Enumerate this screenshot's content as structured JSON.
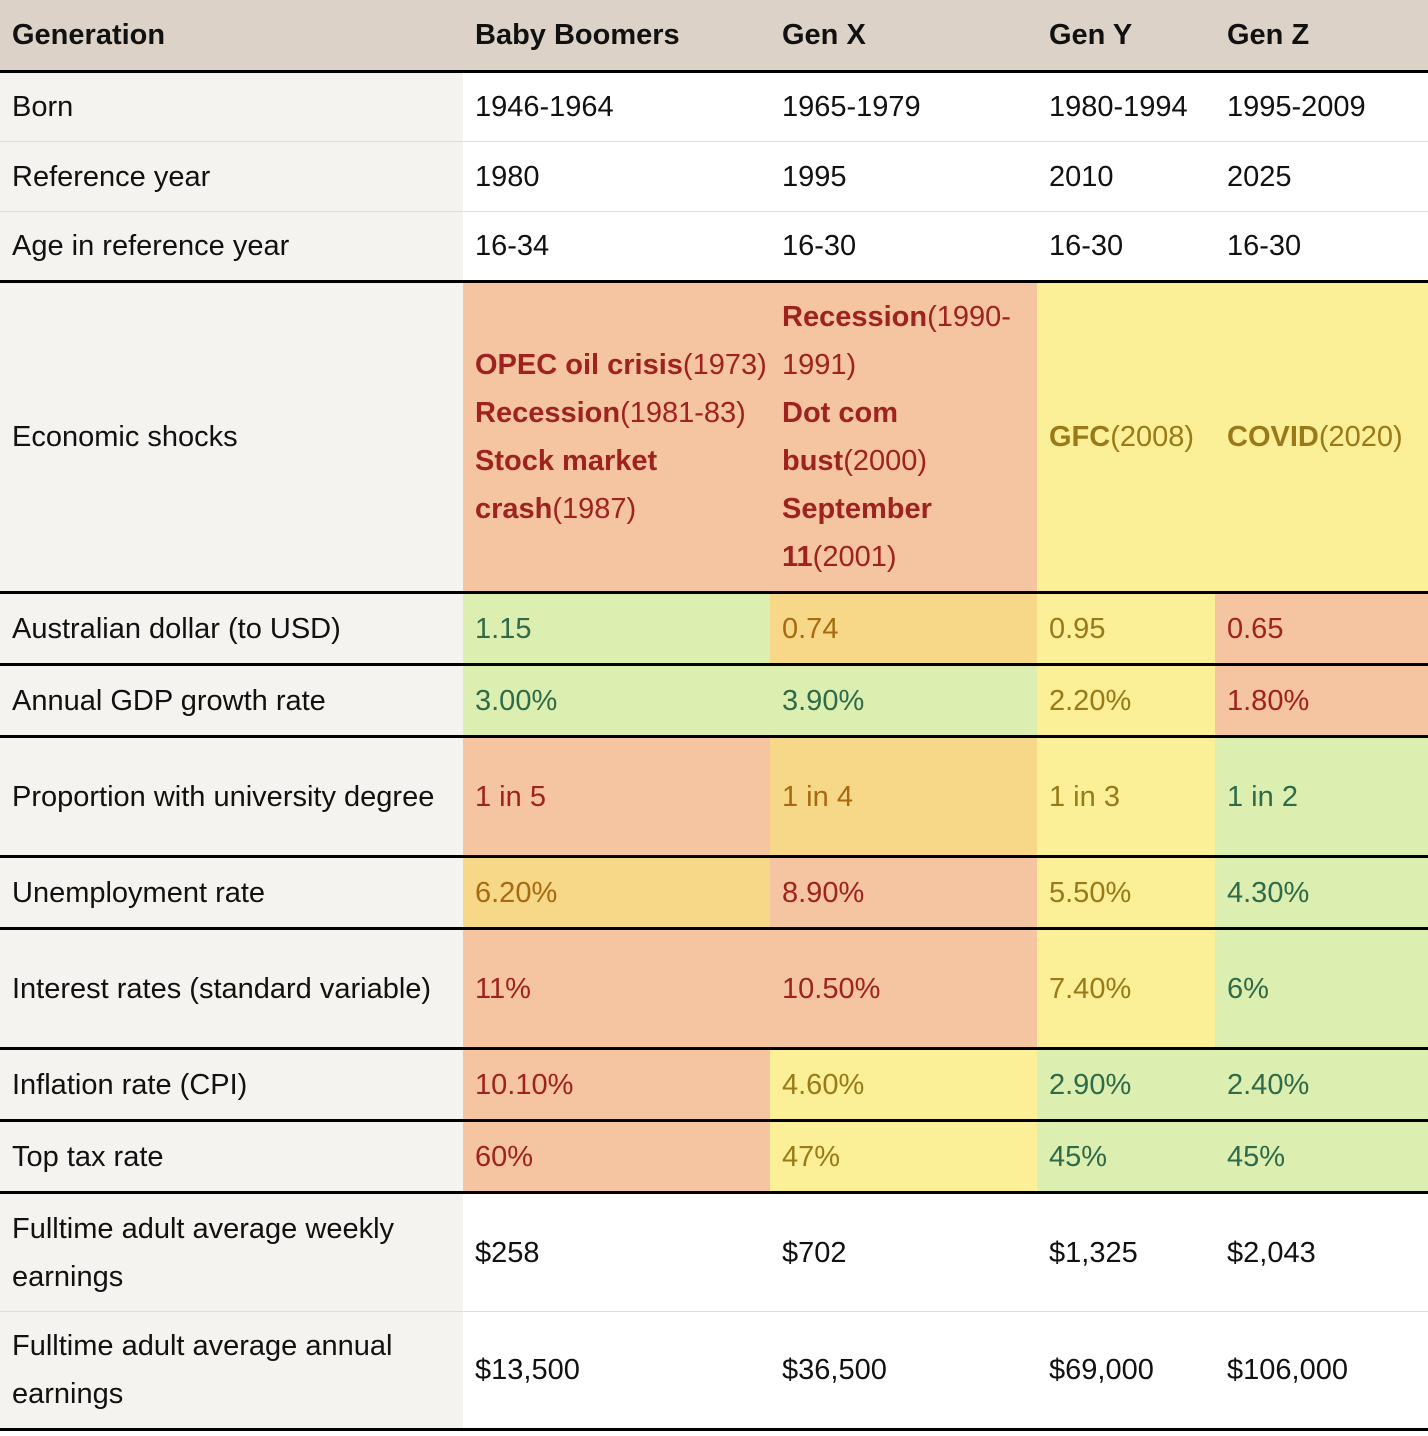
{
  "header": [
    "Generation",
    "Baby Boomers",
    "Gen X",
    "Gen Y",
    "Gen Z"
  ],
  "rows": {
    "born": {
      "label": "Born",
      "values": [
        "1946-1964",
        "1965-1979",
        "1980-1994",
        "1995-2009"
      ]
    },
    "ref_year": {
      "label": "Reference year",
      "values": [
        "1980",
        "1995",
        "2010",
        "2025"
      ]
    },
    "age": {
      "label": "Age in reference year",
      "values": [
        "16-34",
        "16-30",
        "16-30",
        "16-30"
      ]
    },
    "shocks": {
      "label": "Economic shocks",
      "boomers": [
        {
          "name": "OPEC oil crisis",
          "year": "(1973)"
        },
        {
          "name": "Recession",
          "year": "(1981-83)"
        },
        {
          "name": "Stock market crash",
          "year": "(1987)"
        }
      ],
      "genx": [
        {
          "name": "Recession",
          "year": "(1990-1991)"
        },
        {
          "name": "Dot com bust",
          "year": "(2000)"
        },
        {
          "name": "September 11",
          "year": "(2001)"
        }
      ],
      "geny": [
        {
          "name": "GFC",
          "year": "(2008)"
        }
      ],
      "genz": [
        {
          "name": "COVID",
          "year": "(2020)"
        }
      ]
    },
    "aud": {
      "label": "Australian dollar (to USD)",
      "values": [
        "1.15",
        "0.74",
        "0.95",
        "0.65"
      ]
    },
    "gdp": {
      "label": "Annual GDP growth rate",
      "values": [
        "3.00%",
        "3.90%",
        "2.20%",
        "1.80%"
      ]
    },
    "uni": {
      "label": "Proportion with university degree",
      "values": [
        "1 in 5",
        "1 in 4",
        "1 in 3",
        "1 in 2"
      ]
    },
    "unemp": {
      "label": "Unemployment rate",
      "values": [
        "6.20%",
        "8.90%",
        "5.50%",
        "4.30%"
      ]
    },
    "interest": {
      "label": "Interest rates (standard variable)",
      "values": [
        "11%",
        "10.50%",
        "7.40%",
        "6%"
      ]
    },
    "inflation": {
      "label": "Inflation rate (CPI)",
      "values": [
        "10.10%",
        "4.60%",
        "2.90%",
        "2.40%"
      ]
    },
    "tax": {
      "label": "Top tax rate",
      "values": [
        "60%",
        "47%",
        "45%",
        "45%"
      ]
    },
    "weekly": {
      "label": "Fulltime adult average weekly earnings",
      "values": [
        "$258",
        "$702",
        "$1,325",
        "$2,043"
      ]
    },
    "annual": {
      "label": "Fulltime adult average annual earnings",
      "values": [
        "$13,500",
        "$36,500",
        "$69,000",
        "$106,000"
      ]
    }
  },
  "colors": {
    "header_bg": "#dcd2c8",
    "label_bg": "#f4f3f0",
    "red_bg": "#f5c4a0",
    "orange_bg": "#f7d888",
    "yellow_bg": "#fbef97",
    "green_bg": "#dcefb0"
  }
}
